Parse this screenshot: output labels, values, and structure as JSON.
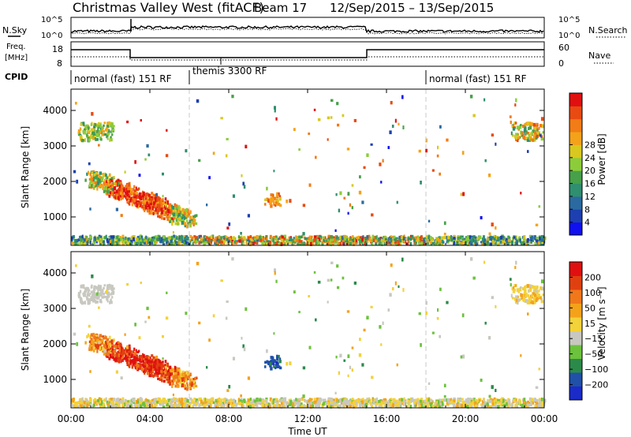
{
  "header": {
    "station": "Christmas Valley West (fitACF)",
    "beam": "Beam 17",
    "date_range": "12/Sep/2015 – 13/Sep/2015"
  },
  "summary_panels": {
    "noise": {
      "left_label": "N.Sky",
      "right_label": "N.Search",
      "left_ticks": [
        "10^5",
        "10^0"
      ],
      "right_ticks": [
        "10^5",
        "10^0"
      ]
    },
    "freq": {
      "left_label_line1": "Freq.",
      "left_label_line2": "[MHz]",
      "right_label": "Nave",
      "left_ticks": [
        "18",
        "8"
      ],
      "right_ticks": [
        "60",
        "0"
      ]
    },
    "cpid": {
      "label": "CPID",
      "segments": [
        {
          "label": "normal (fast) 151 RF",
          "start_hour": 0
        },
        {
          "label": "themis 3300 RF",
          "start_hour": 6
        },
        {
          "label": "normal (fast) 151 RF",
          "start_hour": 18
        }
      ]
    }
  },
  "chart_data": [
    {
      "type": "heatmap",
      "name": "power",
      "ylabel": "Slant Range [km]",
      "ylim": [
        200,
        4600
      ],
      "yticks": [
        "1000",
        "2000",
        "3000",
        "4000"
      ],
      "xlim": [
        0,
        24
      ],
      "colorbar_label": "Power [dB]",
      "colorbar_ticks": [
        "4",
        "8",
        "12",
        "16",
        "20",
        "24",
        "28"
      ],
      "colorbar_colors": [
        "#1010f0",
        "#1d3fb0",
        "#2a6aa0",
        "#2f8f6f",
        "#47a04a",
        "#8ccc3a",
        "#d8c820",
        "#f4a21a",
        "#f27c15",
        "#e84a12",
        "#e01010"
      ],
      "grid": "dashed verticals at 06:00 and 18:00"
    },
    {
      "type": "heatmap",
      "name": "velocity",
      "ylabel": "Slant Range [km]",
      "ylim": [
        200,
        4600
      ],
      "yticks": [
        "1000",
        "2000",
        "3000",
        "4000"
      ],
      "xlim": [
        0,
        24
      ],
      "colorbar_label": "Velocity [m s⁻¹]",
      "colorbar_ticks": [
        "200",
        "100",
        "50",
        "15",
        "−15",
        "−50",
        "−100",
        "−200"
      ],
      "colorbar_colors": [
        "#1a2bc8",
        "#2050a8",
        "#2b8a4a",
        "#6cc23c",
        "#c8c8c0",
        "#f3d23a",
        "#f4a21a",
        "#f0781a",
        "#e04010",
        "#e01010"
      ],
      "grid": "dashed verticals at 06:00 and 18:00"
    }
  ],
  "x_axis": {
    "label": "Time UT",
    "ticks": [
      "00:00",
      "04:00",
      "08:00",
      "12:00",
      "16:00",
      "20:00",
      "00:00"
    ]
  }
}
